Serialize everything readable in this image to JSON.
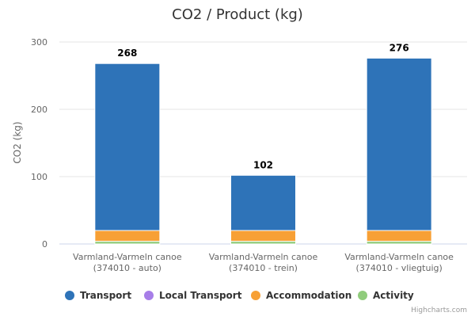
{
  "chart_data": {
    "type": "bar",
    "stacked": true,
    "title": "CO2 / Product (kg)",
    "ylabel": "CO2 (kg)",
    "ylim": [
      0,
      300
    ],
    "yticks": [
      0,
      100,
      200,
      300
    ],
    "categories": [
      [
        "Varmland-Varmeln canoe",
        "(374010 - auto)"
      ],
      [
        "Varmland-Varmeln canoe",
        "(374010 - trein)"
      ],
      [
        "Varmland-Varmeln canoe",
        "(374010 - vliegtuig)"
      ]
    ],
    "series": [
      {
        "name": "Activity",
        "color": "#90cc7c",
        "values": [
          4,
          4,
          4
        ]
      },
      {
        "name": "Accommodation",
        "color": "#f7a035",
        "values": [
          16,
          16,
          16
        ]
      },
      {
        "name": "Local Transport",
        "color": "#a77ee8",
        "values": [
          0,
          0,
          0
        ]
      },
      {
        "name": "Transport",
        "color": "#2e73b8",
        "values": [
          248,
          82,
          256
        ]
      }
    ],
    "totals": [
      268,
      102,
      276
    ],
    "legend": {
      "position": "bottom",
      "items": [
        {
          "name": "Transport",
          "color": "#2e73b8"
        },
        {
          "name": "Local Transport",
          "color": "#a77ee8"
        },
        {
          "name": "Accommodation",
          "color": "#f7a035"
        },
        {
          "name": "Activity",
          "color": "#90cc7c"
        }
      ]
    },
    "credits": "Highcharts.com"
  }
}
